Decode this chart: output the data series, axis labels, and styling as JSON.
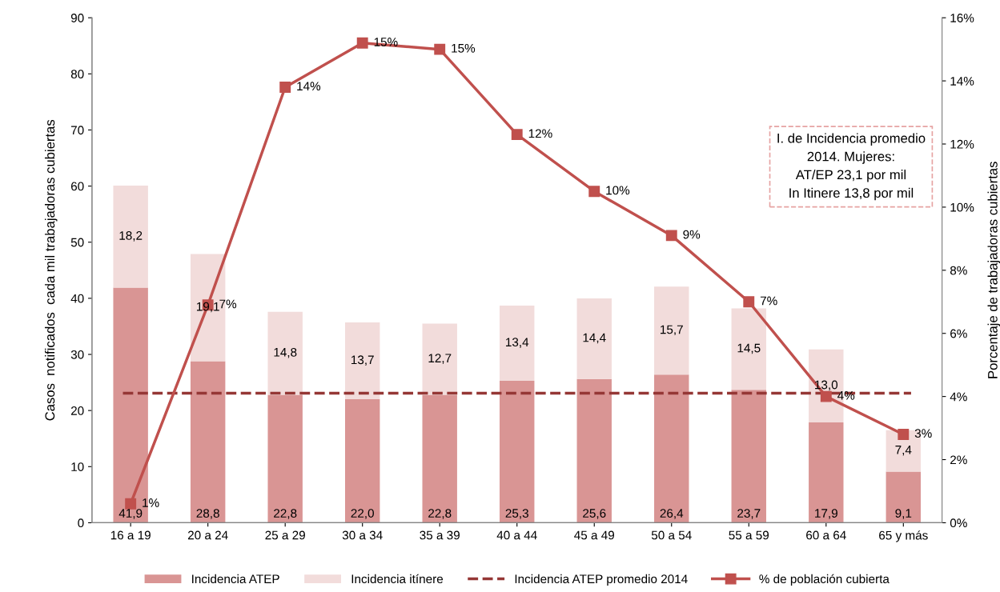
{
  "chart_data": {
    "type": "bar",
    "stacked": true,
    "ylabel": "Casos  notificados  cada mil trabajadoras cubiertas",
    "y2label": "Porcentaje de trabajadoras cubiertas",
    "categories": [
      "16 a 19",
      "20 a 24",
      "25 a 29",
      "30 a 34",
      "35 a 39",
      "40 a 44",
      "45 a 49",
      "50 a 54",
      "55 a 59",
      "60 a 64",
      "65 y más"
    ],
    "series": [
      {
        "name": "Incidencia ATEP",
        "color": "#d99594",
        "values": [
          41.9,
          28.8,
          22.8,
          22.0,
          22.8,
          25.3,
          25.6,
          26.4,
          23.7,
          17.9,
          9.1
        ],
        "value_labels": [
          "41,9",
          "28,8",
          "22,8",
          "22,0",
          "22,8",
          "25,3",
          "25,6",
          "26,4",
          "23,7",
          "17,9",
          "9,1"
        ]
      },
      {
        "name": "Incidencia itínere",
        "color": "#f2dcdb",
        "values": [
          18.2,
          19.1,
          14.8,
          13.7,
          12.7,
          13.4,
          14.4,
          15.7,
          14.5,
          13.0,
          7.4
        ],
        "value_labels": [
          "18,2",
          "19,1",
          "14,8",
          "13,7",
          "12,7",
          "13,4",
          "14,4",
          "15,7",
          "14,5",
          "13,0",
          "7,4"
        ]
      },
      {
        "name": "% de población cubierta",
        "type": "line",
        "axis": "y2",
        "color": "#c0504d",
        "marker": "square",
        "values": [
          0.6,
          6.9,
          13.8,
          15.2,
          15.0,
          12.3,
          10.5,
          9.1,
          7.0,
          4.0,
          2.8
        ],
        "value_labels": [
          "1%",
          "7%",
          "14%",
          "15%",
          "15%",
          "12%",
          "10%",
          "9%",
          "7%",
          "4%",
          "3%"
        ]
      }
    ],
    "ylim": [
      0,
      90
    ],
    "yticks": [
      0,
      10,
      20,
      30,
      40,
      50,
      60,
      70,
      80,
      90
    ],
    "y2lim": [
      0,
      16
    ],
    "y2ticks": [
      {
        "value": 0,
        "label": "0%"
      },
      {
        "value": 2,
        "label": "2%"
      },
      {
        "value": 4,
        "label": "4%"
      },
      {
        "value": 6,
        "label": "6%"
      },
      {
        "value": 8,
        "label": "8%"
      },
      {
        "value": 10,
        "label": "10%"
      },
      {
        "value": 12,
        "label": "12%"
      },
      {
        "value": 14,
        "label": "14%"
      },
      {
        "value": 16,
        "label": "16%"
      }
    ],
    "ref_lines": [
      {
        "axis": "y",
        "value": 23.1,
        "label": "Incidencia ATEP promedio 2014",
        "color": "#953735",
        "line_style": "dashed"
      }
    ],
    "annotations": [
      "I. de Incidencia promedio\n2014. Mujeres:\nAT/EP 23,1 por mil\nIn Itinere 13,8 por mil"
    ],
    "legend": "bottom",
    "grid": false
  }
}
